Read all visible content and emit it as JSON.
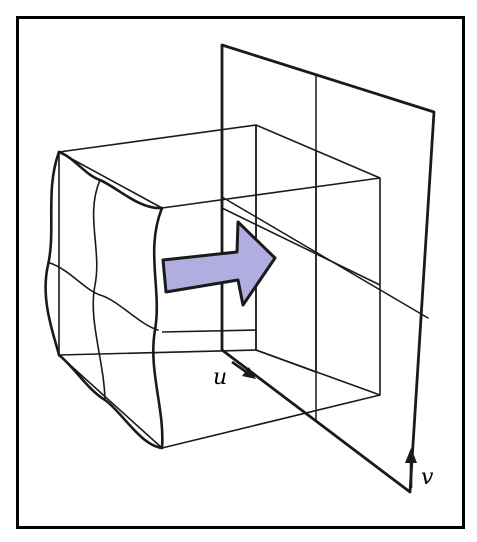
{
  "diagram": {
    "labels": {
      "u_axis": "u",
      "v_axis": "v"
    },
    "colors": {
      "stroke": "#1a1a1a",
      "arrow_fill": "#b0aee0",
      "frame": "#000000",
      "background": "#ffffff"
    }
  }
}
